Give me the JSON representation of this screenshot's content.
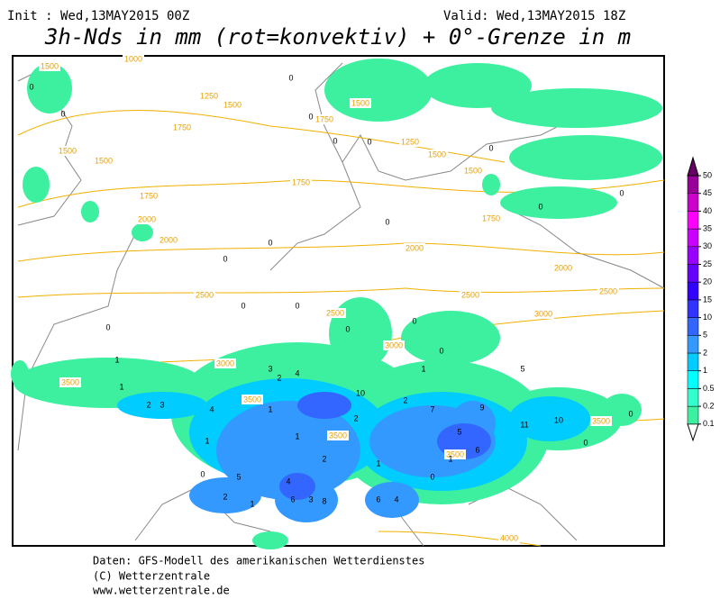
{
  "header": {
    "init": "Init : Wed,13MAY2015 00Z",
    "valid": "Valid: Wed,13MAY2015 18Z",
    "title": "3h-Nds in mm (rot=konvektiv) + 0°-Grenze in m"
  },
  "footer": [
    "Daten: GFS-Modell des amerikanischen Wetterdienstes",
    "(C) Wetterzentrale",
    "www.wetterzentrale.de"
  ],
  "colorbar": {
    "levels": [
      0.1,
      0.2,
      0.5,
      1,
      2,
      5,
      10,
      15,
      20,
      25,
      30,
      35,
      40,
      45,
      50
    ],
    "colors": [
      "#3cf0a0",
      "#33ffcc",
      "#00ffff",
      "#00ccff",
      "#3399ff",
      "#3366ff",
      "#3333ff",
      "#3300ff",
      "#6600ff",
      "#9900ff",
      "#cc00ff",
      "#ff00ff",
      "#cc00cc",
      "#990099",
      "#660066"
    ]
  },
  "contour_labels": [
    1500,
    1000,
    1250,
    1500,
    1750,
    1500,
    1500,
    1750,
    2000,
    1750,
    1750,
    1500,
    1250,
    1500,
    1750,
    1500,
    2000,
    2000,
    2000,
    2500,
    2500,
    2500,
    2500,
    3000,
    3000,
    3000,
    3500,
    3500,
    3500,
    3500,
    3500,
    4000
  ],
  "precip_labels": [
    "0",
    "0",
    "0",
    "0",
    "0",
    "0",
    "0",
    "0",
    "0",
    "0",
    "0",
    "0",
    "0",
    "0",
    "0",
    "0",
    "0",
    "0",
    "1",
    "1",
    "1",
    "1",
    "1",
    "1",
    "2",
    "2",
    "2",
    "3",
    "3",
    "4",
    "4",
    "5",
    "5",
    "6",
    "7",
    "9",
    "10",
    "11",
    "10",
    "1",
    "2",
    "3",
    "4",
    "2",
    "2",
    "4",
    "6",
    "8",
    "6",
    "5",
    "1",
    "1",
    "0",
    "0",
    "0",
    "0"
  ]
}
